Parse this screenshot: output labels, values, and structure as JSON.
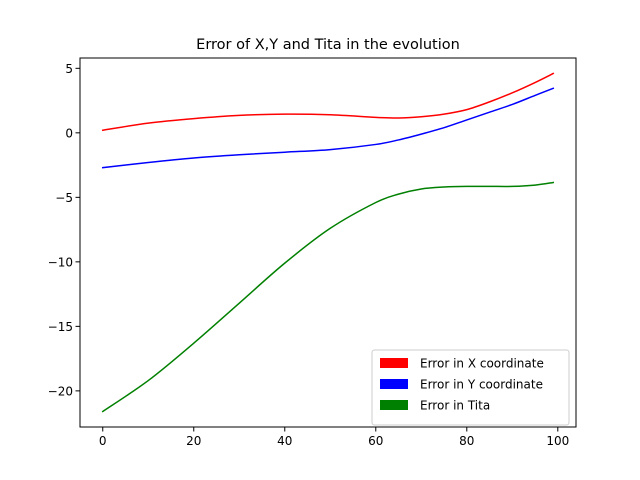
{
  "chart_data": {
    "type": "line",
    "title": "Error of X,Y and Tita in the evolution",
    "xlabel": "",
    "ylabel": "",
    "xlim": [
      -5,
      104
    ],
    "ylim": [
      -22.8,
      5.8
    ],
    "xticks": [
      0,
      20,
      40,
      60,
      80,
      100
    ],
    "xtick_labels": [
      "0",
      "20",
      "40",
      "60",
      "80",
      "100"
    ],
    "yticks": [
      5,
      0,
      -5,
      -10,
      -15,
      -20
    ],
    "ytick_labels": [
      "5",
      "0",
      "−5",
      "−10",
      "−15",
      "−20"
    ],
    "grid": false,
    "legend_position": "lower-right",
    "x": [
      0,
      10,
      20,
      30,
      40,
      50,
      60,
      65,
      70,
      75,
      80,
      85,
      90,
      95,
      99
    ],
    "series": [
      {
        "name": "Error in X coordinate",
        "color": "#ff0000",
        "values": [
          0.2,
          0.75,
          1.1,
          1.35,
          1.45,
          1.4,
          1.2,
          1.15,
          1.25,
          1.45,
          1.8,
          2.4,
          3.1,
          3.9,
          4.6
        ]
      },
      {
        "name": "Error in Y coordinate",
        "color": "#0000ff",
        "values": [
          -2.7,
          -2.3,
          -1.95,
          -1.7,
          -1.5,
          -1.3,
          -0.9,
          -0.55,
          -0.1,
          0.4,
          1.0,
          1.6,
          2.2,
          2.9,
          3.45
        ]
      },
      {
        "name": "Error in Tita",
        "color": "#008000",
        "values": [
          -21.6,
          -19.2,
          -16.3,
          -13.2,
          -10.1,
          -7.4,
          -5.4,
          -4.75,
          -4.35,
          -4.2,
          -4.15,
          -4.15,
          -4.15,
          -4.05,
          -3.85
        ]
      }
    ]
  }
}
